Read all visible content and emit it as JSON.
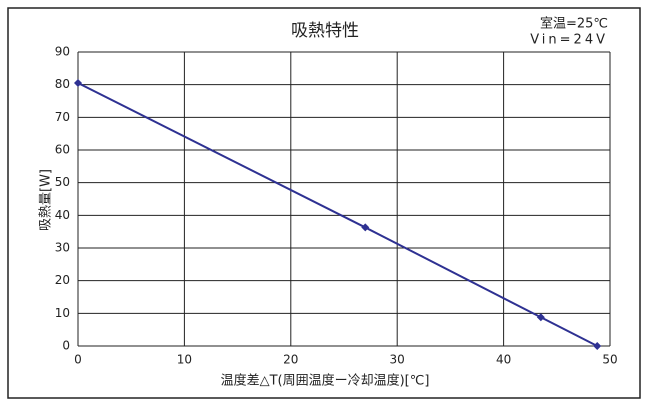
{
  "chart_data": {
    "type": "line",
    "title": "吸熱特性",
    "annotations": [
      "室温=25℃",
      "Vin=24V"
    ],
    "x_label": "温度差△T(周囲温度ー冷却温度)[℃]",
    "y_label": "吸熱量[W]",
    "x": [
      0,
      27,
      43.5,
      48.8
    ],
    "series": [
      {
        "color": "#2e3192",
        "values": [
          80.5,
          36.3,
          8.8,
          0
        ]
      }
    ],
    "xlim": [
      0,
      50
    ],
    "xticks": [
      0,
      10,
      20,
      30,
      40,
      50
    ],
    "ylim": [
      0,
      90
    ],
    "yticks": [
      0,
      10,
      20,
      30,
      40,
      50,
      60,
      70,
      80,
      90
    ],
    "grid": true
  }
}
